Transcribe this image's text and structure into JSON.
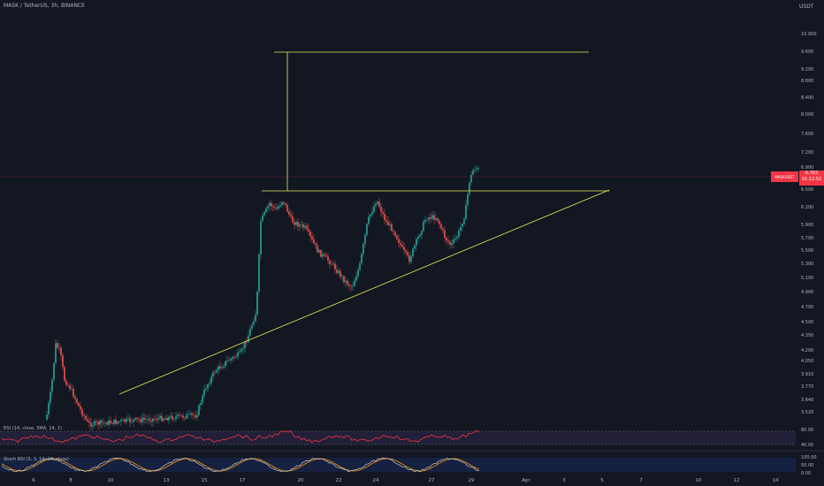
{
  "header": {
    "symbol_title": "MASK / TetherUS, 3h, BINANCE",
    "currency": "USDT"
  },
  "price_axis": {
    "labels": [
      "10.000",
      "9.600",
      "9.200",
      "8.800",
      "8.400",
      "8.000",
      "7.600",
      "7.200",
      "6.900",
      "6.500",
      "6.200",
      "5.900",
      "5.700",
      "5.500",
      "5.300",
      "5.100",
      "4.900",
      "4.700",
      "4.500",
      "4.350",
      "4.200",
      "4.050",
      "3.910",
      "3.770",
      "3.640",
      "3.520"
    ]
  },
  "last_price": {
    "symbol": "MASKUSDT",
    "value": "6.763",
    "countdown": "01:12:52"
  },
  "time_axis": {
    "labels": [
      "6",
      "8",
      "10",
      "13",
      "15",
      "17",
      "20",
      "22",
      "24",
      "27",
      "29",
      "Apr",
      "3",
      "5",
      "7",
      "10",
      "12",
      "14"
    ]
  },
  "rsi": {
    "title": "RSI (14, close, SMA, 14, 2)",
    "levels": [
      "80.00",
      "40.00"
    ]
  },
  "stoch": {
    "title": "Stoch RSI (3, 3, 14, 14, close)",
    "levels": [
      "100.00",
      "50.00",
      "0.00"
    ]
  },
  "colors": {
    "background": "#131722",
    "up_candle": "#26a69a",
    "down_candle": "#ef5350",
    "trendline": "#e8ec5a",
    "rsi_line": "#f23645",
    "stoch_k": "#e6e6e6",
    "stoch_d": "#ff9800"
  }
}
